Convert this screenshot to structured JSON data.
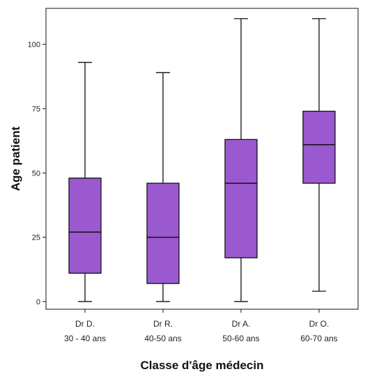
{
  "chart_data": {
    "type": "boxplot",
    "xlabel": "Classe d'âge médecin",
    "ylabel": "Age patient",
    "ylim": [
      -3,
      114
    ],
    "yticks": [
      0,
      25,
      50,
      75,
      100
    ],
    "grid": false,
    "categories": [
      {
        "line1": "Dr D.",
        "line2": "30 - 40 ans"
      },
      {
        "line1": "Dr R.",
        "line2": "40-50 ans"
      },
      {
        "line1": "Dr A.",
        "line2": "50-60 ans"
      },
      {
        "line1": "Dr O.",
        "line2": "60-70 ans"
      }
    ],
    "boxes": [
      {
        "min": 0,
        "q1": 11,
        "median": 27,
        "q3": 48,
        "max": 93
      },
      {
        "min": 0,
        "q1": 7,
        "median": 25,
        "q3": 46,
        "max": 89
      },
      {
        "min": 0,
        "q1": 17,
        "median": 46,
        "q3": 63,
        "max": 110
      },
      {
        "min": 4,
        "q1": 46,
        "median": 61,
        "q3": 74,
        "max": 110
      }
    ],
    "box_color": "#9b59d0",
    "line_color": "#111111"
  }
}
